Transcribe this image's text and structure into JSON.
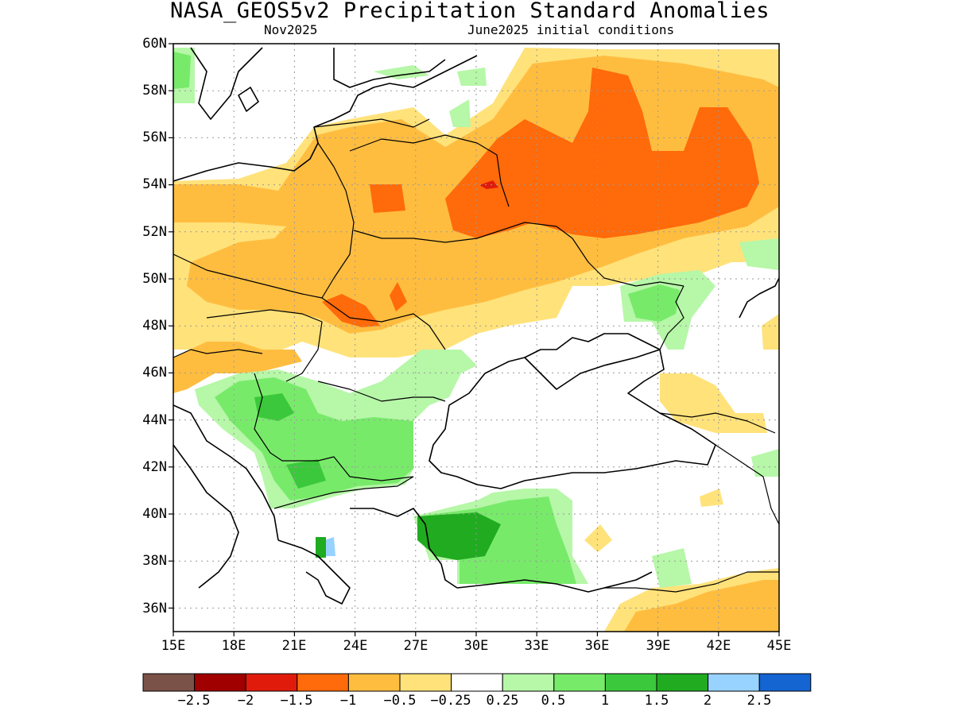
{
  "title": "NASA_GEOS5v2 Precipitation Standard Anomalies",
  "subtitle_left": "Nov2025",
  "subtitle_right": "June2025 initial conditions",
  "map": {
    "lat_labels": [
      "60N",
      "58N",
      "56N",
      "54N",
      "52N",
      "50N",
      "48N",
      "46N",
      "44N",
      "42N",
      "40N",
      "38N",
      "36N"
    ],
    "lon_labels": [
      "15E",
      "18E",
      "21E",
      "24E",
      "27E",
      "30E",
      "33E",
      "36E",
      "39E",
      "42E",
      "45E"
    ],
    "lat_range": [
      35,
      60
    ],
    "lon_range": [
      15,
      45
    ],
    "grid": true,
    "grid_style": "dotted"
  },
  "colorbar": {
    "colors": [
      "#7a5248",
      "#a00000",
      "#e01b0c",
      "#ff6a0a",
      "#ffbd40",
      "#ffe27a",
      "#ffffff",
      "#b6f7a8",
      "#78ea6a",
      "#3cc83c",
      "#20ab20",
      "#98d2ff",
      "#1464d2"
    ],
    "labels": [
      "−2.5",
      "−2",
      "−1.5",
      "−1",
      "−0.5",
      "−0.25",
      "0.25",
      "0.5",
      "1",
      "1.5",
      "2",
      "2.5"
    ]
  },
  "palette": {
    "light_orange": "#ffe27a",
    "orange": "#ffbd40",
    "dark_orange": "#ff6a0a",
    "red": "#e01b0c",
    "light_green": "#b6f7a8",
    "green": "#78ea6a",
    "mid_green": "#3cc83c",
    "dark_green": "#20ab20",
    "light_blue": "#98d2ff"
  }
}
